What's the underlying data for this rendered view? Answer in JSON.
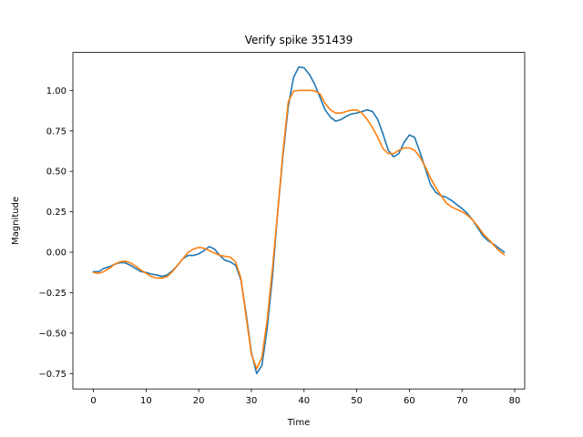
{
  "chart_data": {
    "type": "line",
    "title": "Verify spike 351439",
    "xlabel": "Time",
    "ylabel": "Magnitude",
    "xlim": [
      -3.9,
      81.9
    ],
    "ylim": [
      -0.845,
      1.235
    ],
    "xticks": [
      0,
      10,
      20,
      30,
      40,
      50,
      60,
      70,
      80
    ],
    "yticks": [
      -0.75,
      -0.5,
      -0.25,
      0.0,
      0.25,
      0.5,
      0.75,
      1.0
    ],
    "ytick_labels": [
      "−0.75",
      "−0.50",
      "−0.25",
      "0.00",
      "0.25",
      "0.50",
      "0.75",
      "1.00"
    ],
    "grid": false,
    "legend": "none",
    "series": [
      {
        "color": "#1f77b4",
        "x": [
          0,
          1,
          2,
          3,
          4,
          5,
          6,
          7,
          8,
          9,
          10,
          11,
          12,
          13,
          14,
          15,
          16,
          17,
          18,
          19,
          20,
          21,
          22,
          23,
          24,
          25,
          26,
          27,
          28,
          29,
          30,
          31,
          32,
          33,
          34,
          35,
          36,
          37,
          38,
          39,
          40,
          41,
          42,
          43,
          44,
          45,
          46,
          47,
          48,
          49,
          50,
          51,
          52,
          53,
          54,
          55,
          56,
          57,
          58,
          59,
          60,
          61,
          62,
          63,
          64,
          65,
          66,
          67,
          68,
          69,
          70,
          71,
          72,
          73,
          74,
          75,
          76,
          77,
          78
        ],
        "y": [
          -0.12,
          -0.12,
          -0.1,
          -0.09,
          -0.075,
          -0.065,
          -0.065,
          -0.08,
          -0.1,
          -0.12,
          -0.125,
          -0.135,
          -0.14,
          -0.15,
          -0.14,
          -0.115,
          -0.08,
          -0.04,
          -0.02,
          -0.02,
          -0.01,
          0.01,
          0.035,
          0.02,
          -0.02,
          -0.05,
          -0.06,
          -0.08,
          -0.17,
          -0.38,
          -0.62,
          -0.75,
          -0.7,
          -0.47,
          -0.15,
          0.25,
          0.6,
          0.9,
          1.08,
          1.145,
          1.14,
          1.1,
          1.04,
          0.96,
          0.88,
          0.835,
          0.81,
          0.82,
          0.84,
          0.855,
          0.86,
          0.87,
          0.88,
          0.87,
          0.82,
          0.73,
          0.63,
          0.59,
          0.61,
          0.68,
          0.725,
          0.71,
          0.62,
          0.52,
          0.42,
          0.37,
          0.35,
          0.34,
          0.32,
          0.295,
          0.27,
          0.24,
          0.2,
          0.15,
          0.1,
          0.07,
          0.05,
          0.025,
          0.0
        ]
      },
      {
        "color": "#ff7f0e",
        "x": [
          0,
          1,
          2,
          3,
          4,
          5,
          6,
          7,
          8,
          9,
          10,
          11,
          12,
          13,
          14,
          15,
          16,
          17,
          18,
          19,
          20,
          21,
          22,
          23,
          24,
          25,
          26,
          27,
          28,
          29,
          30,
          31,
          32,
          33,
          34,
          35,
          36,
          37,
          38,
          39,
          40,
          41,
          42,
          43,
          44,
          45,
          46,
          47,
          48,
          49,
          50,
          51,
          52,
          53,
          54,
          55,
          56,
          57,
          58,
          59,
          60,
          61,
          62,
          63,
          64,
          65,
          66,
          67,
          68,
          69,
          70,
          71,
          72,
          73,
          74,
          75,
          76,
          77,
          78
        ],
        "y": [
          -0.125,
          -0.13,
          -0.12,
          -0.1,
          -0.075,
          -0.06,
          -0.055,
          -0.065,
          -0.085,
          -0.11,
          -0.13,
          -0.15,
          -0.16,
          -0.16,
          -0.15,
          -0.12,
          -0.08,
          -0.04,
          0.0,
          0.02,
          0.03,
          0.025,
          0.01,
          -0.005,
          -0.02,
          -0.025,
          -0.03,
          -0.06,
          -0.16,
          -0.4,
          -0.63,
          -0.72,
          -0.65,
          -0.42,
          -0.1,
          0.25,
          0.62,
          0.93,
          0.995,
          1.0,
          1.0,
          1.0,
          0.998,
          0.98,
          0.92,
          0.88,
          0.86,
          0.86,
          0.87,
          0.878,
          0.88,
          0.86,
          0.82,
          0.77,
          0.71,
          0.64,
          0.61,
          0.61,
          0.63,
          0.645,
          0.645,
          0.63,
          0.59,
          0.53,
          0.46,
          0.4,
          0.35,
          0.305,
          0.28,
          0.265,
          0.25,
          0.23,
          0.2,
          0.16,
          0.115,
          0.08,
          0.045,
          0.01,
          -0.015
        ]
      }
    ]
  }
}
